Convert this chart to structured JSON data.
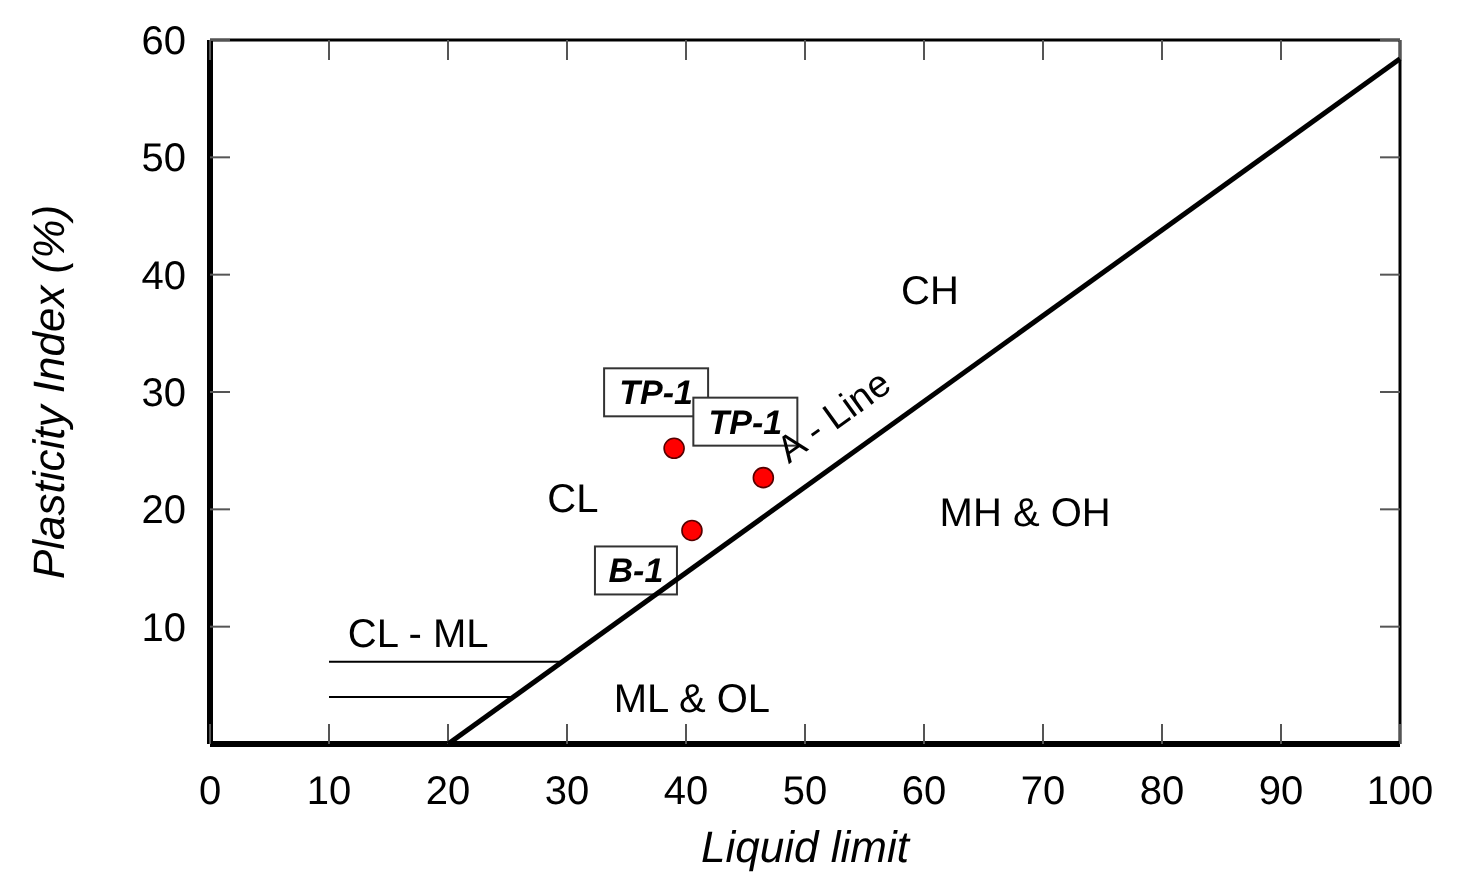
{
  "chart_data": {
    "type": "scatter",
    "xlabel": "Liquid limit",
    "ylabel": "Plasticity Index (%)",
    "xlim": [
      0,
      100
    ],
    "ylim": [
      0,
      60
    ],
    "xticks": [
      0,
      10,
      20,
      30,
      40,
      50,
      60,
      70,
      80,
      90,
      100
    ],
    "yticks": [
      10,
      20,
      30,
      40,
      50,
      60
    ],
    "grid": false,
    "legend": false,
    "series": [
      {
        "color": "#ff0000",
        "marker": "circle",
        "x": [
          39,
          46.5,
          40.5
        ],
        "values": [
          25.2,
          22.7,
          18.2
        ],
        "value_labels": [
          "TP-1",
          "TP-1",
          "B-1"
        ]
      },
      {
        "type": "line",
        "name": "A - Line",
        "color": "#000000",
        "line_style": "solid",
        "x": [
          20,
          100
        ],
        "values": [
          0,
          58.4
        ]
      },
      {
        "type": "line",
        "color": "#000000",
        "line_style": "solid",
        "x": [
          10,
          29.6
        ],
        "values": [
          7,
          7
        ]
      },
      {
        "type": "line",
        "color": "#000000",
        "line_style": "solid",
        "x": [
          10,
          25.5
        ],
        "values": [
          4,
          4
        ]
      }
    ],
    "annotations": [
      "CH",
      "CL",
      "MH & OH",
      "ML & OL",
      "CL - ML"
    ]
  }
}
